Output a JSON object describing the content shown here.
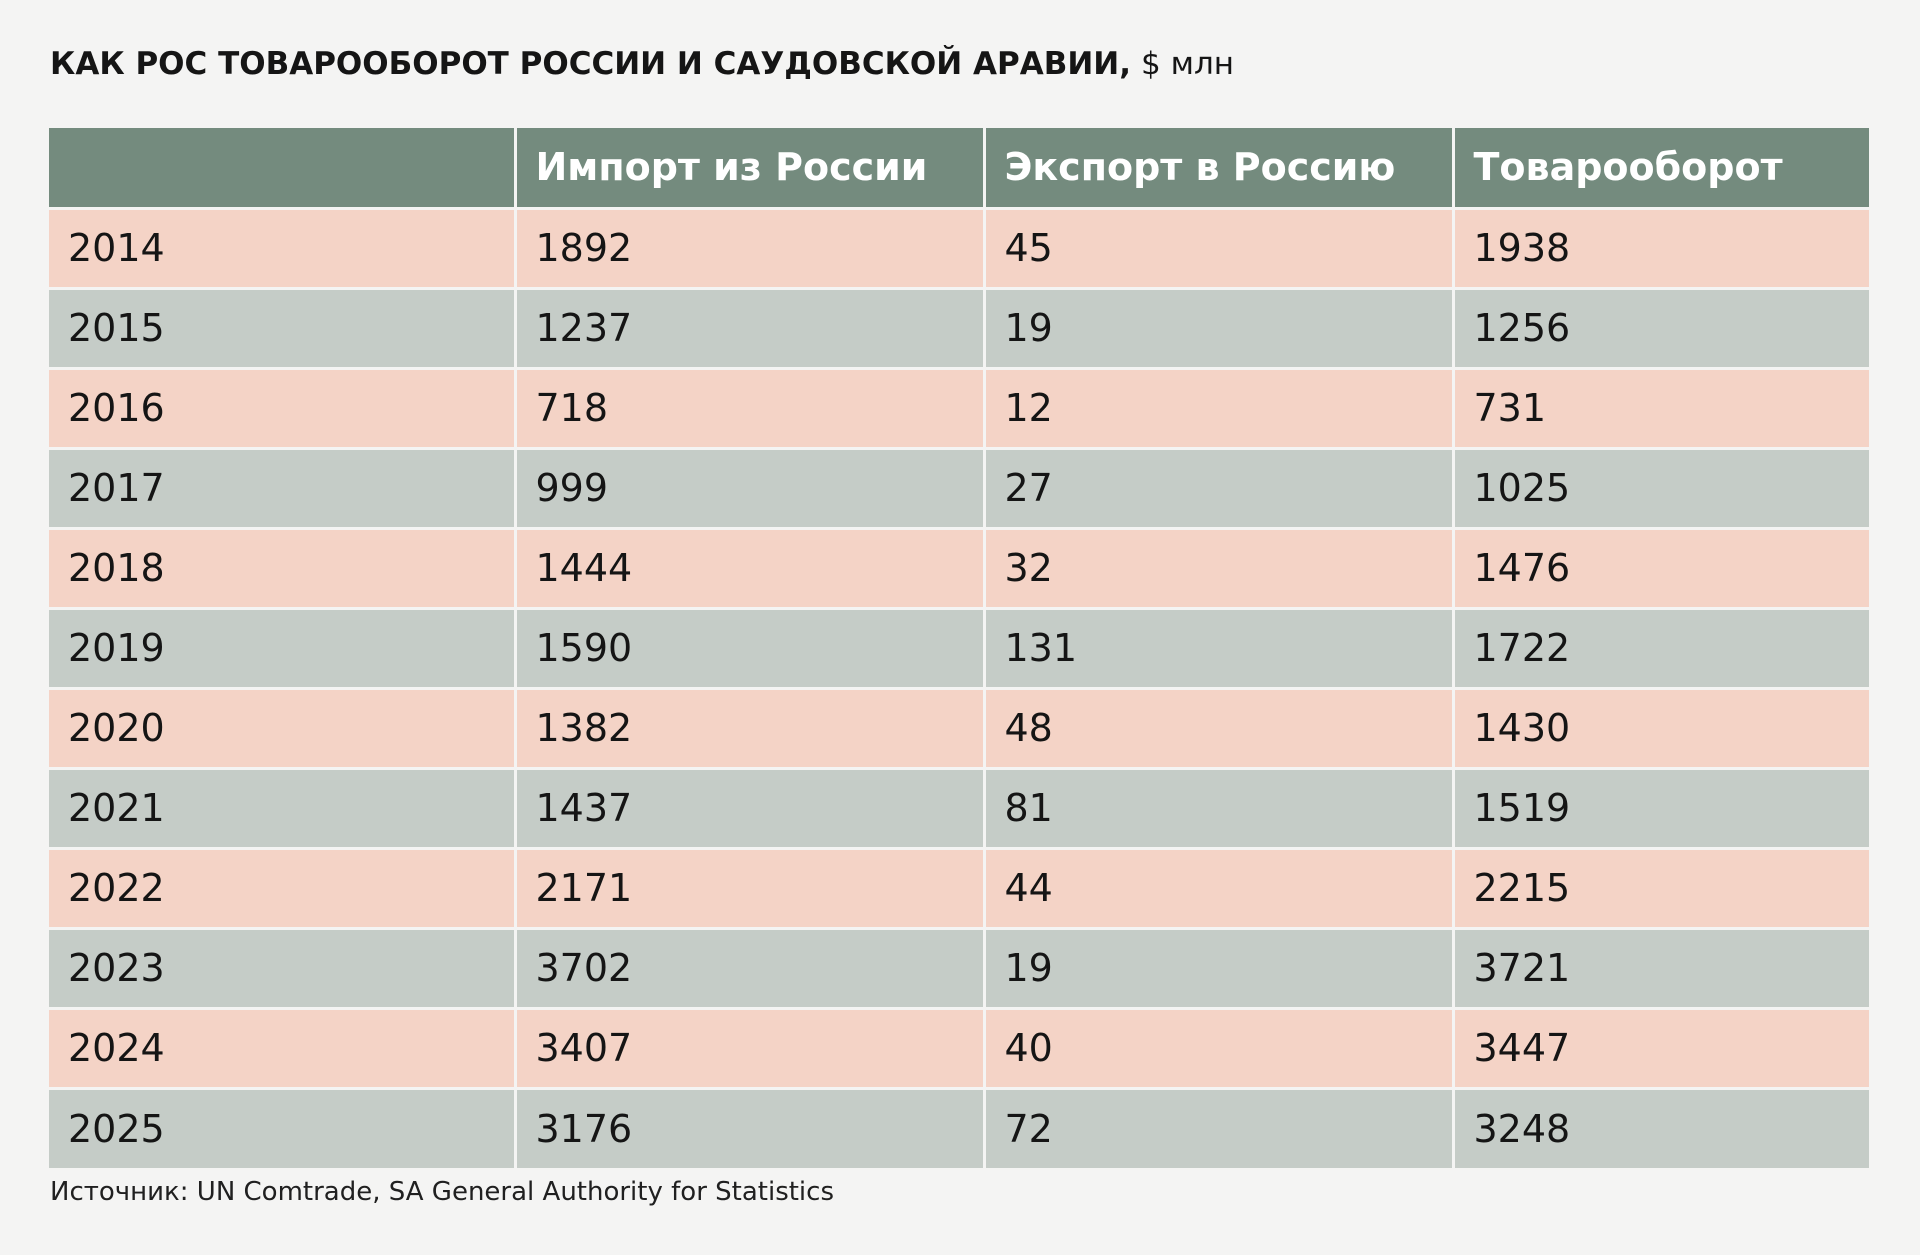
{
  "chart_data": {
    "type": "table",
    "title": "КАК РОС ТОВАРООБОРОТ РОССИИ И САУДОВСКОЙ АРАВИИ,",
    "unit": "$ млн",
    "columns": [
      "",
      "Импорт из России",
      "Экспорт в Россию",
      "Товарооборот"
    ],
    "rows": [
      [
        "2014",
        "1892",
        "45",
        "1938"
      ],
      [
        "2015",
        "1237",
        "19",
        "1256"
      ],
      [
        "2016",
        "718",
        "12",
        "731"
      ],
      [
        "2017",
        "999",
        "27",
        "1025"
      ],
      [
        "2018",
        "1444",
        "32",
        "1476"
      ],
      [
        "2019",
        "1590",
        "131",
        "1722"
      ],
      [
        "2020",
        "1382",
        "48",
        "1430"
      ],
      [
        "2021",
        "1437",
        "81",
        "1519"
      ],
      [
        "2022",
        "2171",
        "44",
        "2215"
      ],
      [
        "2023",
        "3702",
        "19",
        "3721"
      ],
      [
        "2024",
        "3407",
        "40",
        "3447"
      ],
      [
        "2025",
        "3176",
        "72",
        "3248"
      ]
    ],
    "source": "Источник: UN Comtrade, SA General Authority for Statistics"
  },
  "colors": {
    "header_bg": "#748b7e",
    "row_pink": "#f4d3c6",
    "row_gray": "#c5ccc7",
    "background": "#f4f4f3"
  }
}
